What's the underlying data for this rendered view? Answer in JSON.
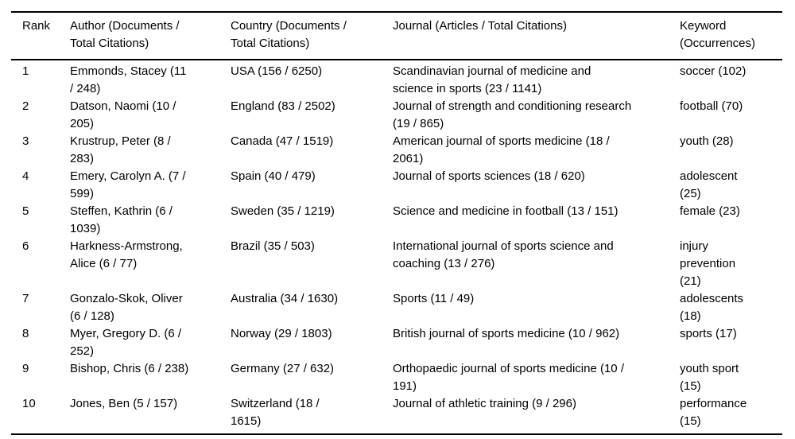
{
  "colors": {
    "background": "#ffffff",
    "text": "#000000",
    "rule": "#000000"
  },
  "table": {
    "columns": [
      {
        "key": "rank",
        "label": "Rank"
      },
      {
        "key": "author",
        "label": "Author (Documents / Total Citations)"
      },
      {
        "key": "country",
        "label": "Country (Documents / Total Citations)"
      },
      {
        "key": "journal",
        "label": "Journal (Articles / Total Citations)"
      },
      {
        "key": "keyword",
        "label": "Keyword (Occurrences)"
      }
    ],
    "rows": [
      {
        "rank": "1",
        "author": "Emmonds, Stacey (11 / 248)",
        "country": "USA (156 / 6250)",
        "journal": "Scandinavian journal of medicine and science in sports (23 / 1141)",
        "keyword": "soccer (102)"
      },
      {
        "rank": "2",
        "author": "Datson, Naomi (10 / 205)",
        "country": "England (83 / 2502)",
        "journal": "Journal of strength and conditioning research (19 / 865)",
        "keyword": "football (70)"
      },
      {
        "rank": "3",
        "author": "Krustrup, Peter (8 / 283)",
        "country": "Canada (47 / 1519)",
        "journal": "American journal of sports medicine (18 / 2061)",
        "keyword": "youth (28)"
      },
      {
        "rank": "4",
        "author": "Emery, Carolyn A. (7 / 599)",
        "country": "Spain (40 / 479)",
        "journal": "Journal of sports sciences (18 / 620)",
        "keyword": "adolescent (25)"
      },
      {
        "rank": "5",
        "author": "Steffen, Kathrin (6 / 1039)",
        "country": "Sweden (35 / 1219)",
        "journal": "Science and medicine in football (13 / 151)",
        "keyword": "female (23)"
      },
      {
        "rank": "6",
        "author": "Harkness-Armstrong, Alice (6 / 77)",
        "country": "Brazil (35 / 503)",
        "journal": "International journal of sports science and coaching (13 / 276)",
        "keyword": "injury prevention (21)"
      },
      {
        "rank": "7",
        "author": "Gonzalo-Skok, Oliver (6 / 128)",
        "country": "Australia (34 / 1630)",
        "journal": "Sports (11 / 49)",
        "keyword": "adolescents (18)"
      },
      {
        "rank": "8",
        "author": "Myer, Gregory D. (6 / 252)",
        "country": "Norway (29 / 1803)",
        "journal": "British journal of sports medicine (10 / 962)",
        "keyword": "sports (17)"
      },
      {
        "rank": "9",
        "author": "Bishop, Chris (6 / 238)",
        "country": "Germany (27 / 632)",
        "journal": "Orthopaedic journal of sports medicine (10 / 191)",
        "keyword": "youth sport (15)"
      },
      {
        "rank": "10",
        "author": "Jones, Ben (5 / 157)",
        "country": "Switzerland (18 / 1615)",
        "journal": "Journal of athletic training (9 / 296)",
        "keyword": "performance (15)"
      }
    ]
  }
}
